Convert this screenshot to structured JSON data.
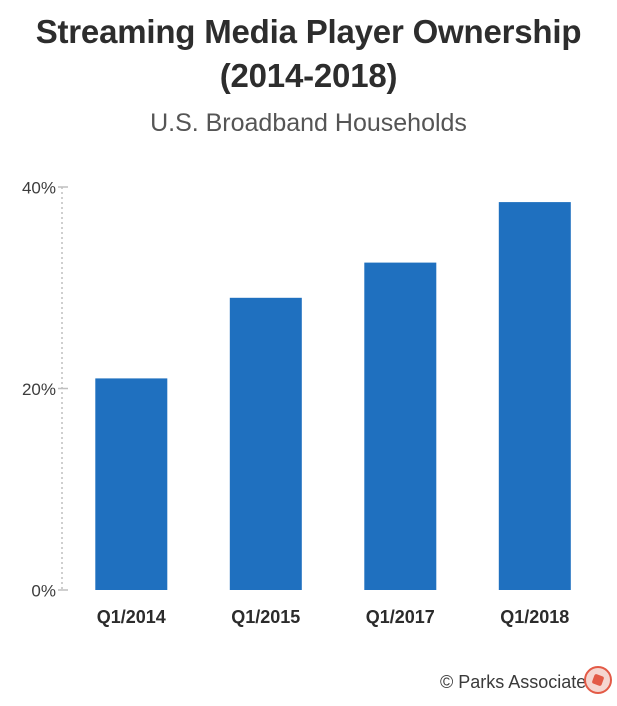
{
  "chart_data": {
    "type": "bar",
    "title": "Streaming Media Player Ownership (2014-2018)",
    "subtitle": "U.S. Broadband Households",
    "categories": [
      "Q1/2014",
      "Q1/2015",
      "Q1/2017",
      "Q1/2018"
    ],
    "values": [
      21,
      29,
      32.5,
      38.5
    ],
    "ylim": [
      0,
      40
    ],
    "yticks": [
      0,
      20,
      40
    ],
    "ytick_labels": [
      "0%",
      "20%",
      "40%"
    ],
    "xlabel": "",
    "ylabel": "",
    "bar_color": "#1f70bf",
    "axis_color": "#bfbfbf",
    "grid": false,
    "legend": "none"
  },
  "source": "© Parks Associates"
}
